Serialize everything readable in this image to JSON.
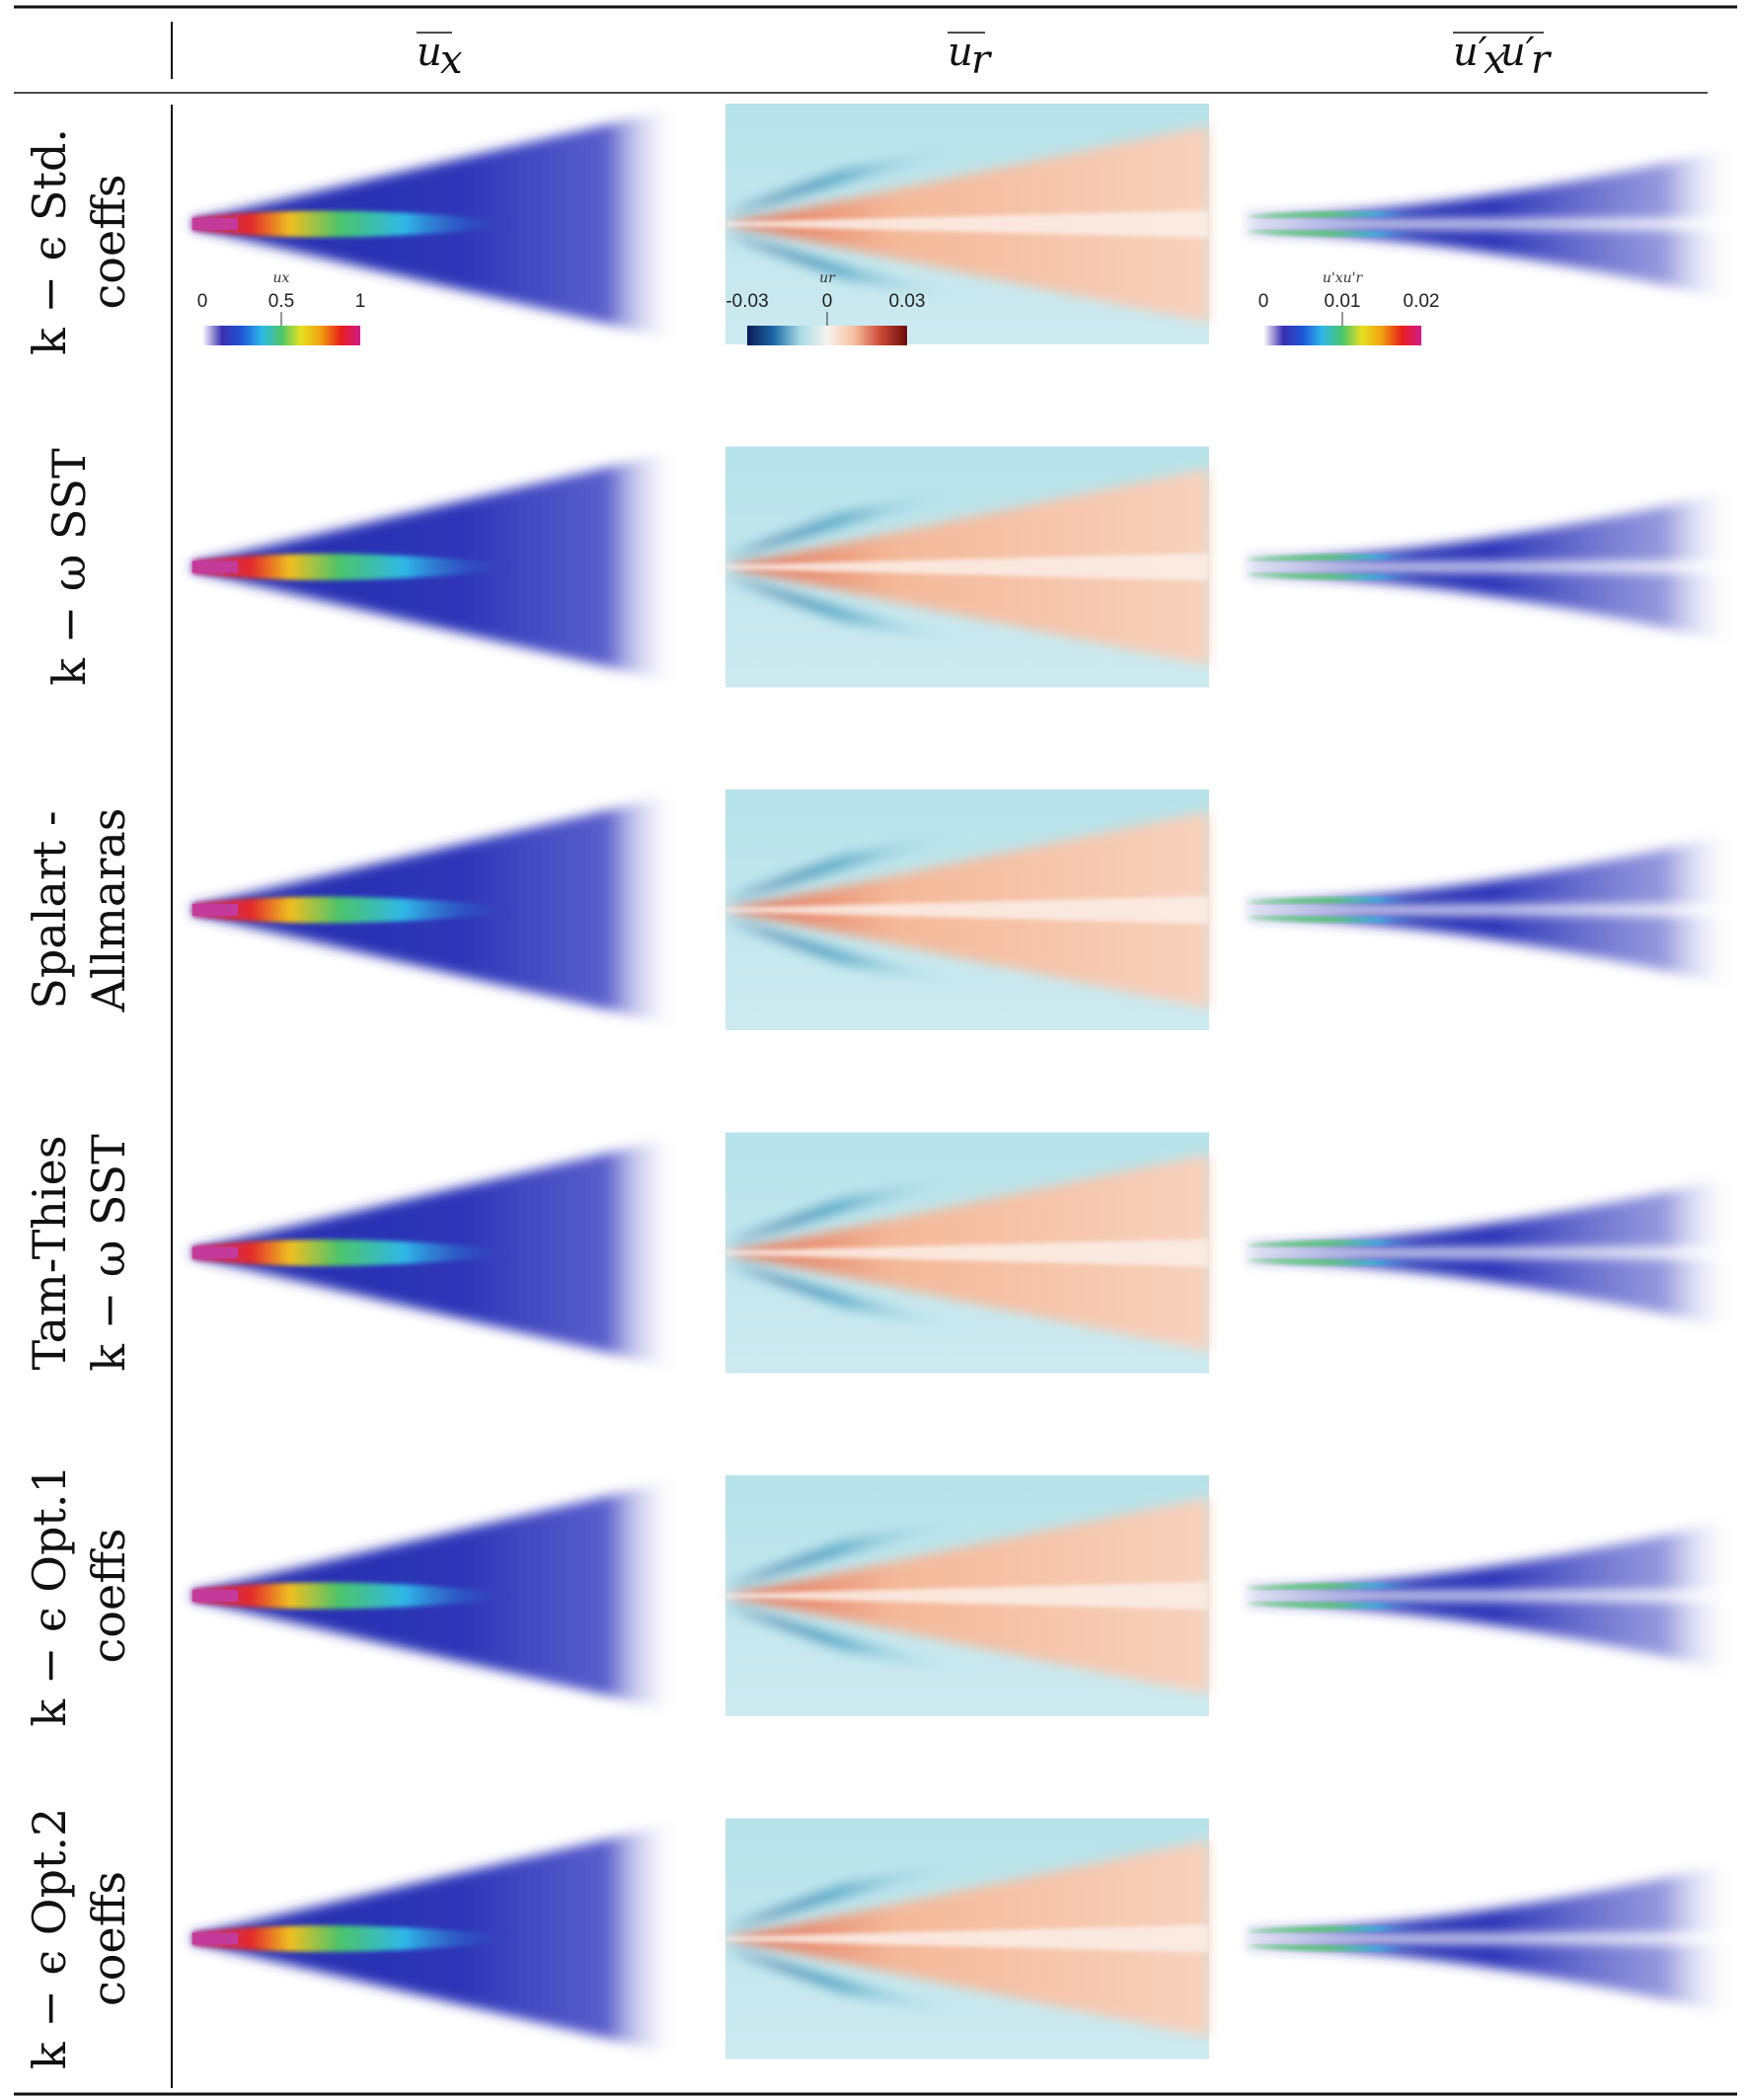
{
  "columns": [
    {
      "id": "ux",
      "label": "u",
      "sub": "x"
    },
    {
      "id": "ur",
      "label": "u",
      "sub": "r"
    },
    {
      "id": "uxur",
      "label": "u′",
      "sub": "x",
      "label2": "u′",
      "sub2": "r"
    }
  ],
  "rows": [
    {
      "id": "k-eps-std",
      "line1": "k − ϵ Std.",
      "line2": "coeffs"
    },
    {
      "id": "k-omega-sst",
      "line1": "k − ω SST",
      "line2": ""
    },
    {
      "id": "spalart-allmaras",
      "line1": "Spalart -",
      "line2": "Allmaras"
    },
    {
      "id": "tam-thies",
      "line1": "Tam-Thies",
      "line2": "k − ω SST"
    },
    {
      "id": "k-eps-opt1",
      "line1": "k − ϵ Opt.1",
      "line2": "coeffs"
    },
    {
      "id": "k-eps-opt2",
      "line1": "k − ϵ Opt.2",
      "line2": "coeffs"
    }
  ],
  "colorbars": [
    {
      "title": "ux",
      "ticks": [
        "0",
        "0.5",
        "1"
      ],
      "colormap": "rainbow"
    },
    {
      "title": "ur",
      "ticks": [
        "-0.03",
        "0",
        "0.03"
      ],
      "colormap": "coolwarm"
    },
    {
      "title": "u'xu'r",
      "ticks": [
        "0",
        "0.01",
        "0.02"
      ],
      "colormap": "rainbow"
    }
  ],
  "colors": {
    "rainbow": [
      "#ffffff",
      "#3a2fb0",
      "#1e56d8",
      "#2fb8e8",
      "#4cc46a",
      "#e8e020",
      "#f0a010",
      "#e8201a",
      "#d01a8a"
    ],
    "coolwarm": [
      "#0b1a55",
      "#1d6aa8",
      "#a8dce6",
      "#f6f4ee",
      "#f6c2a2",
      "#cc4a35",
      "#6b0b0b"
    ]
  }
}
